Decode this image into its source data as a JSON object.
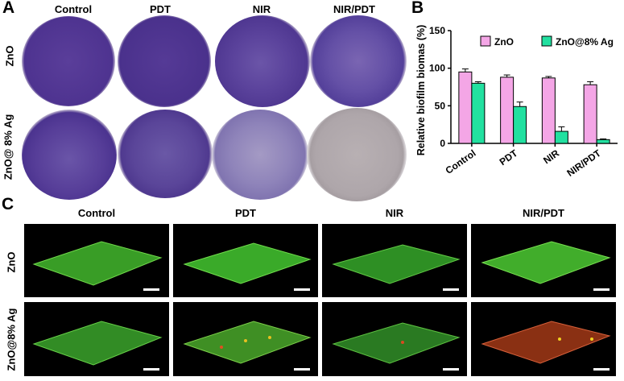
{
  "panels": {
    "a": "A",
    "b": "B",
    "c": "C"
  },
  "panel_a": {
    "columns": [
      "Control",
      "PDT",
      "NIR",
      "NIR/PDT"
    ],
    "rows": [
      "ZnO",
      "ZnO@ 8% Ag"
    ],
    "dish_colors": [
      [
        "#5a3e9a",
        "#553a96",
        "#5e45a0",
        "#6a52a8"
      ],
      [
        "#5a4199",
        "#5c4a9e",
        "#8d80b8",
        "#b0a8ab"
      ]
    ]
  },
  "panel_c": {
    "columns": [
      "Control",
      "PDT",
      "NIR",
      "NIR/PDT"
    ],
    "rows": [
      "ZnO",
      "ZnO@8% Ag"
    ],
    "tile_colors": [
      [
        "#3fae2a",
        "#3fb82c",
        "#36a82a",
        "#48c030"
      ],
      [
        "#3ba42c",
        "#4aa82a",
        "#34982a",
        "#b8401a"
      ]
    ]
  },
  "chart_data": {
    "type": "bar",
    "ylabel": "Relative biofilm biomas (%)",
    "xlabel": "",
    "ylim": [
      0,
      150
    ],
    "yticks": [
      0,
      50,
      100,
      150
    ],
    "categories": [
      "Control",
      "PDT",
      "NIR",
      "NIR/PDT"
    ],
    "series": [
      {
        "name": "ZnO",
        "color": "#f4a6e6",
        "values": [
          95,
          88,
          87,
          78
        ],
        "errors": [
          4,
          3,
          2,
          4
        ]
      },
      {
        "name": "ZnO@8% Ag",
        "color": "#22e0a0",
        "values": [
          80,
          49,
          16,
          5
        ],
        "errors": [
          2,
          6,
          6,
          1
        ]
      }
    ],
    "legend_position": "top"
  }
}
